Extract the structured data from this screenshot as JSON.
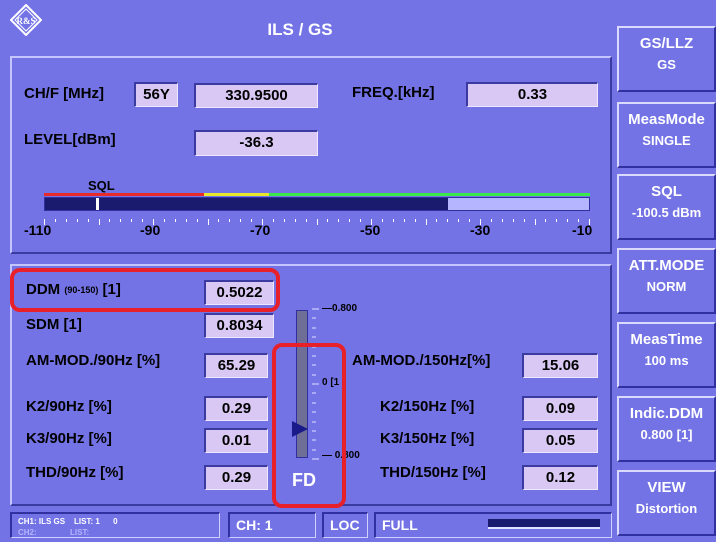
{
  "header": {
    "title": "ILS / GS",
    "logo_text": "R&S"
  },
  "top": {
    "chf_label": "CH/F [MHz]",
    "channel_value": "56Y",
    "freq_mhz": "330.9500",
    "freq_khz_label": "FREQ.[kHz]",
    "freq_khz_value": "0.33",
    "level_label": "LEVEL[dBm]",
    "level_value": "-36.3",
    "sql_label": "SQL",
    "scale_labels": [
      "-110",
      "-90",
      "-70",
      "-50",
      "-30",
      "-10"
    ],
    "level_bar_fraction": 0.74,
    "sql_marker_fraction": 0.094
  },
  "meas": {
    "ddm_label": "DDM",
    "ddm_sub": "(90-150)",
    "ddm_unit": "[1]",
    "ddm_value": "0.5022",
    "sdm_label": "SDM [1]",
    "sdm_value": "0.8034",
    "am90_label": "AM-MOD./90Hz [%]",
    "am90_value": "65.29",
    "am150_label": "AM-MOD./150Hz[%]",
    "am150_value": "15.06",
    "k2_90_label": "K2/90Hz [%]",
    "k2_90_value": "0.29",
    "k2_150_label": "K2/150Hz [%]",
    "k2_150_value": "0.09",
    "k3_90_label": "K3/90Hz [%]",
    "k3_90_value": "0.01",
    "k3_150_label": "K3/150Hz [%]",
    "k3_150_value": "0.05",
    "thd90_label": "THD/90Hz [%]",
    "thd90_value": "0.29",
    "thd150_label": "THD/150Hz [%]",
    "thd150_value": "0.12",
    "indicator_top": "0.800",
    "indicator_mid": "0 [1",
    "indicator_bottom": "0.800",
    "indicator_label": "FD"
  },
  "softkeys": [
    {
      "title": "GS/LLZ",
      "value": "GS"
    },
    {
      "title": "MeasMode",
      "value": "SINGLE"
    },
    {
      "title": "SQL",
      "value": "-100.5 dBm"
    },
    {
      "title": "ATT.MODE",
      "value": "NORM"
    },
    {
      "title": "MeasTime",
      "value": "100  ms"
    },
    {
      "title": "Indic.DDM",
      "value": "0.800 [1]"
    },
    {
      "title": "VIEW",
      "value": "Distortion"
    }
  ],
  "status": {
    "ch1_line": "CH1: ILS GS    LIST: 1      0",
    "ch2_line": "CH2:               LIST:",
    "ch": "CH: 1",
    "loc": "LOC",
    "full": "FULL"
  },
  "colors": {
    "background": "#7373e6",
    "value_box": "#d9c8f3",
    "highlight": "#e8202a",
    "bar_fill": "#1a1a6e"
  }
}
